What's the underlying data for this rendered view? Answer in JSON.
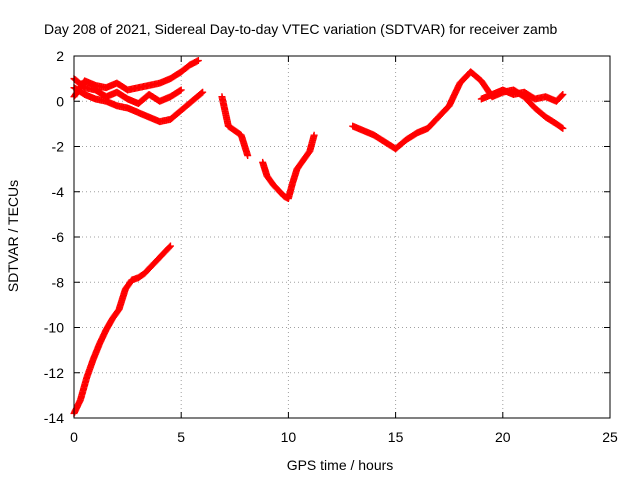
{
  "chart_data": {
    "type": "scatter",
    "title": "Day 208 of 2021, Sidereal Day-to-day VTEC variation (SDTVAR) for receiver zamb",
    "xlabel": "GPS time / hours",
    "ylabel": "SDTVAR / TECUs",
    "xlim": [
      0,
      25
    ],
    "ylim": [
      -14,
      2
    ],
    "xticks": [
      0,
      5,
      10,
      15,
      20,
      25
    ],
    "yticks": [
      -14,
      -12,
      -10,
      -8,
      -6,
      -4,
      -2,
      0,
      2
    ],
    "grid": true,
    "marker": "plus",
    "color": "#ff0000",
    "series": [
      {
        "name": "arc-low-rising",
        "x": [
          0,
          0.3,
          0.6,
          0.9,
          1.2,
          1.5,
          1.8,
          2.1,
          2.4,
          2.7,
          3.0,
          3.3,
          3.6,
          3.9,
          4.2,
          4.5
        ],
        "y": [
          -13.8,
          -13.2,
          -12.2,
          -11.4,
          -10.7,
          -10.1,
          -9.6,
          -9.2,
          -8.3,
          -7.9,
          -7.8,
          -7.6,
          -7.3,
          -7.0,
          -6.7,
          -6.4
        ]
      },
      {
        "name": "arc-early-rising",
        "x": [
          0,
          0.5,
          1.0,
          1.5,
          2.0,
          2.5,
          3.0,
          3.5,
          4.0,
          4.5,
          5.0,
          5.4,
          5.8
        ],
        "y": [
          0.2,
          0.9,
          0.7,
          0.6,
          0.8,
          0.5,
          0.6,
          0.7,
          0.8,
          1.0,
          1.3,
          1.6,
          1.8
        ]
      },
      {
        "name": "arc-early-falling",
        "x": [
          0,
          0.5,
          1.0,
          1.5,
          2.0,
          2.5,
          3.0,
          3.5,
          4.0,
          4.5,
          5.0,
          5.5,
          6.0
        ],
        "y": [
          0.6,
          0.3,
          0.1,
          0.0,
          -0.2,
          -0.3,
          -0.5,
          -0.7,
          -0.9,
          -0.8,
          -0.4,
          0.0,
          0.4
        ]
      },
      {
        "name": "arc-early-mid",
        "x": [
          0,
          0.5,
          1.0,
          1.5,
          2.0,
          2.5,
          3.0,
          3.5,
          4.0,
          4.5,
          5.0
        ],
        "y": [
          1.0,
          0.6,
          0.5,
          0.2,
          0.4,
          0.1,
          -0.1,
          0.3,
          0.0,
          0.2,
          0.5
        ]
      },
      {
        "name": "arc-dip-one",
        "x": [
          6.9,
          7.2,
          7.5,
          7.8,
          8.1
        ],
        "y": [
          0.2,
          -1.1,
          -1.3,
          -1.5,
          -2.4
        ]
      },
      {
        "name": "arc-dip-two",
        "x": [
          8.8,
          9.0,
          9.3,
          9.6,
          9.8,
          10.0,
          10.2,
          10.4,
          10.7,
          11.0,
          11.2
        ],
        "y": [
          -2.7,
          -3.3,
          -3.7,
          -4.0,
          -4.2,
          -4.3,
          -3.6,
          -3.0,
          -2.6,
          -2.2,
          -1.5
        ]
      },
      {
        "name": "arc-afternoon",
        "x": [
          13.0,
          13.5,
          14.0,
          14.5,
          15.0,
          15.5,
          16.0,
          16.5,
          17.0,
          17.5,
          18.0,
          18.5,
          19.0,
          19.5,
          20.0,
          20.5,
          21.0,
          21.5,
          22.0,
          22.5,
          22.8
        ],
        "y": [
          -1.1,
          -1.3,
          -1.5,
          -1.8,
          -2.1,
          -1.7,
          -1.4,
          -1.2,
          -0.7,
          -0.2,
          0.8,
          1.3,
          0.9,
          0.2,
          0.4,
          0.5,
          0.2,
          -0.3,
          -0.7,
          -1.0,
          -1.2
        ]
      },
      {
        "name": "arc-evening",
        "x": [
          19.0,
          19.5,
          20.0,
          20.5,
          21.0,
          21.5,
          22.0,
          22.5,
          22.8
        ],
        "y": [
          0.1,
          0.3,
          0.5,
          0.3,
          0.4,
          0.1,
          0.2,
          0.0,
          0.3
        ]
      }
    ]
  }
}
